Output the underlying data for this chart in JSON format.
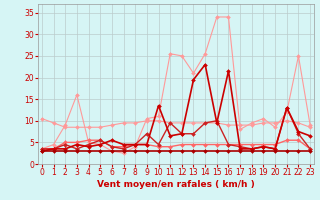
{
  "x": [
    0,
    1,
    2,
    3,
    4,
    5,
    6,
    7,
    8,
    9,
    10,
    11,
    12,
    13,
    14,
    15,
    16,
    17,
    18,
    19,
    20,
    21,
    22,
    23
  ],
  "series": [
    {
      "color": "#FF9999",
      "lw": 0.8,
      "marker": "D",
      "ms": 2.0,
      "values": [
        10.5,
        9.5,
        8.5,
        8.5,
        8.5,
        8.5,
        9.0,
        9.5,
        9.5,
        10.0,
        10.0,
        9.5,
        9.5,
        9.5,
        9.5,
        9.5,
        9.0,
        9.0,
        9.0,
        9.5,
        9.5,
        10.0,
        9.5,
        8.5
      ]
    },
    {
      "color": "#FF9999",
      "lw": 0.8,
      "marker": "D",
      "ms": 2.0,
      "values": [
        3.5,
        4.5,
        9.0,
        16.0,
        5.0,
        4.5,
        3.0,
        2.5,
        4.0,
        10.5,
        11.0,
        25.5,
        25.0,
        21.0,
        25.5,
        34.0,
        34.0,
        8.0,
        9.5,
        10.5,
        8.5,
        12.0,
        25.0,
        9.0
      ]
    },
    {
      "color": "#FF6666",
      "lw": 1.0,
      "marker": "D",
      "ms": 2.0,
      "values": [
        3.5,
        3.5,
        5.0,
        5.0,
        5.5,
        5.5,
        4.0,
        4.0,
        4.5,
        4.5,
        4.0,
        4.0,
        4.5,
        4.5,
        4.5,
        4.5,
        4.5,
        4.5,
        4.5,
        4.5,
        4.5,
        5.5,
        5.5,
        3.5
      ]
    },
    {
      "color": "#CC2222",
      "lw": 1.0,
      "marker": "D",
      "ms": 2.0,
      "values": [
        3.5,
        3.5,
        4.5,
        3.5,
        4.5,
        5.5,
        4.0,
        3.5,
        4.5,
        7.0,
        4.5,
        9.5,
        7.0,
        7.0,
        9.5,
        10.0,
        4.5,
        4.0,
        3.5,
        4.0,
        3.5,
        13.0,
        7.0,
        3.5
      ]
    },
    {
      "color": "#CC0000",
      "lw": 1.2,
      "marker": "D",
      "ms": 2.0,
      "values": [
        3.0,
        3.5,
        3.5,
        4.5,
        4.0,
        4.5,
        5.5,
        4.5,
        4.5,
        4.5,
        13.5,
        6.5,
        7.0,
        19.5,
        23.0,
        9.5,
        21.5,
        3.5,
        3.5,
        4.0,
        3.5,
        13.0,
        7.5,
        6.5
      ]
    },
    {
      "color": "#AA0000",
      "lw": 1.2,
      "marker": "D",
      "ms": 2.0,
      "values": [
        3.0,
        3.0,
        3.0,
        3.0,
        3.0,
        3.0,
        3.0,
        3.0,
        3.0,
        3.0,
        3.0,
        3.0,
        3.0,
        3.0,
        3.0,
        3.0,
        3.0,
        3.0,
        3.0,
        3.0,
        3.0,
        3.0,
        3.0,
        3.0
      ]
    }
  ],
  "bg_color": "#D6F5F5",
  "grid_color": "#BBCCCC",
  "xlabel": "Vent moyen/en rafales ( km/h )",
  "xlabel_color": "#CC0000",
  "xlabel_fontsize": 6.5,
  "tick_color": "#CC0000",
  "tick_fontsize": 5.5,
  "ylim": [
    0,
    37
  ],
  "yticks": [
    0,
    5,
    10,
    15,
    20,
    25,
    30,
    35
  ],
  "xticks": [
    0,
    1,
    2,
    3,
    4,
    5,
    6,
    7,
    8,
    9,
    10,
    11,
    12,
    13,
    14,
    15,
    16,
    17,
    18,
    19,
    20,
    21,
    22,
    23
  ]
}
